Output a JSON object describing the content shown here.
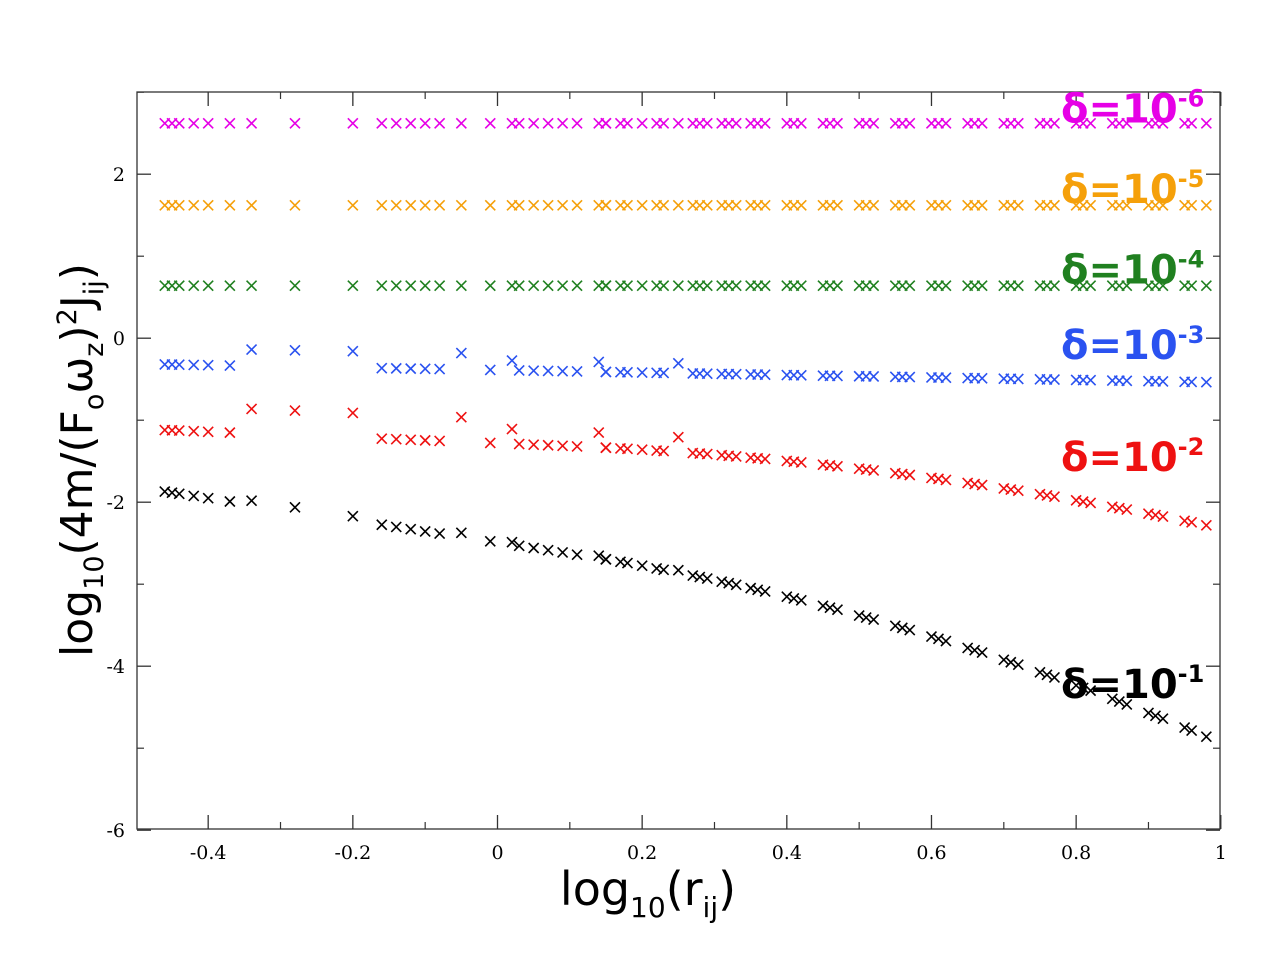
{
  "chart_data": {
    "type": "scatter",
    "title": "",
    "xlabel": {
      "base": "log",
      "base_sub": "10",
      "open": "(r",
      "arg_sub": "ij",
      "close": ")"
    },
    "ylabel": {
      "base": "log",
      "base_sub": "10",
      "open": "(4m/(F",
      "f_sub": "o",
      "omega": "ω",
      "omega_sub": "z",
      "close_paren": ")",
      "power": "2",
      "j": "J",
      "j_sub": "ij",
      "close": ")"
    },
    "xlim": [
      -0.48,
      1.0
    ],
    "ylim": [
      -6,
      3
    ],
    "x_ticks": [
      {
        "value": -0.4,
        "label": "-0.4"
      },
      {
        "value": -0.2,
        "label": "-0.2"
      },
      {
        "value": 0,
        "label": "0"
      },
      {
        "value": 0.2,
        "label": "0.2"
      },
      {
        "value": 0.4,
        "label": "0.4"
      },
      {
        "value": 0.6,
        "label": "0.6"
      },
      {
        "value": 0.8,
        "label": "0.8"
      },
      {
        "value": 1,
        "label": "1"
      }
    ],
    "y_ticks": [
      {
        "value": -6,
        "label": "-6"
      },
      {
        "value": -4,
        "label": "-4"
      },
      {
        "value": -2,
        "label": "-2"
      },
      {
        "value": 0,
        "label": "0"
      },
      {
        "value": 2,
        "label": "2"
      }
    ],
    "x_points": [
      -0.46,
      -0.45,
      -0.44,
      -0.42,
      -0.4,
      -0.37,
      -0.34,
      -0.28,
      -0.2,
      -0.16,
      -0.14,
      -0.12,
      -0.1,
      -0.08,
      -0.05,
      -0.01,
      0.02,
      0.03,
      0.05,
      0.07,
      0.09,
      0.11,
      0.14,
      0.15,
      0.17,
      0.2,
      0.22,
      0.25,
      0.27,
      0.29,
      0.31,
      0.33,
      0.35,
      0.37,
      0.4,
      0.42,
      0.45,
      0.47,
      0.5,
      0.52,
      0.55,
      0.57,
      0.6,
      0.62,
      0.65,
      0.67,
      0.7,
      0.72,
      0.75,
      0.77,
      0.8,
      0.82,
      0.85,
      0.87,
      0.9,
      0.92,
      0.95,
      0.98
    ],
    "series": [
      {
        "name": "δ=10⁻⁶",
        "label_prefix": "δ=10",
        "label_exp": "-6",
        "color": "#e600e6",
        "shape": "flat",
        "base": 2.62,
        "slope": 0,
        "curve": 0
      },
      {
        "name": "δ=10⁻⁵",
        "label_prefix": "δ=10",
        "label_exp": "-5",
        "color": "#f5a00a",
        "shape": "flat",
        "base": 1.62,
        "slope": 0,
        "curve": 0
      },
      {
        "name": "δ=10⁻⁴",
        "label_prefix": "δ=10",
        "label_exp": "-4",
        "color": "#208020",
        "shape": "flat",
        "base": 0.64,
        "slope": 0,
        "curve": 0
      },
      {
        "name": "δ=10⁻³",
        "label_prefix": "δ=10",
        "label_exp": "-3",
        "color": "#2a52f0",
        "shape": "sawtooth",
        "base": -0.32,
        "slope": -0.15,
        "curve": 0,
        "jump": 0.2
      },
      {
        "name": "δ=10⁻²",
        "label_prefix": "δ=10",
        "label_exp": "-2",
        "color": "#ee1111",
        "shape": "sawtooth",
        "base": -1.12,
        "slope": -0.35,
        "curve": -0.85,
        "jump": 0.3
      },
      {
        "name": "δ=10⁻¹",
        "label_prefix": "δ=10",
        "label_exp": "-1",
        "color": "#000000",
        "shape": "sawtooth",
        "base": -1.87,
        "slope": -1.35,
        "curve": -1.35,
        "jump": 0.05
      }
    ]
  }
}
